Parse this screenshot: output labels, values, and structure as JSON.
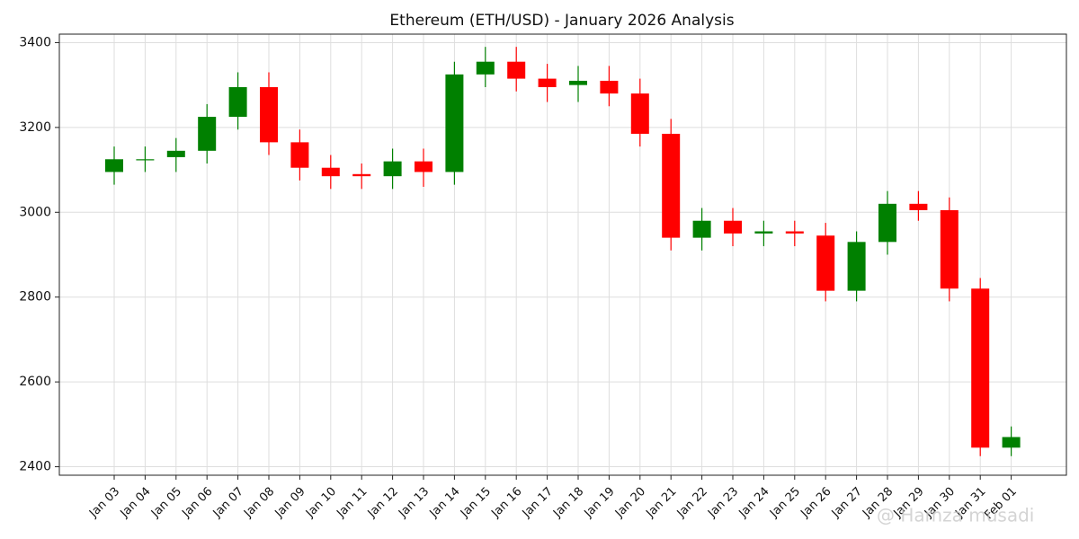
{
  "watermark": "@ Hamza musadi",
  "chart_data": {
    "type": "candlestick",
    "title": "Ethereum (ETH/USD) - January 2026 Analysis",
    "xlabel": "",
    "ylabel": "",
    "ylim": [
      2380,
      3420
    ],
    "yticks": [
      "2400",
      "2600",
      "2800",
      "3000",
      "3200",
      "3400"
    ],
    "grid": true,
    "up_color": "#008000",
    "down_color": "#ff0000",
    "categories": [
      "Jan 03",
      "Jan 04",
      "Jan 05",
      "Jan 06",
      "Jan 07",
      "Jan 08",
      "Jan 09",
      "Jan 10",
      "Jan 11",
      "Jan 12",
      "Jan 13",
      "Jan 14",
      "Jan 15",
      "Jan 16",
      "Jan 17",
      "Jan 18",
      "Jan 19",
      "Jan 20",
      "Jan 21",
      "Jan 22",
      "Jan 23",
      "Jan 24",
      "Jan 25",
      "Jan 26",
      "Jan 27",
      "Jan 28",
      "Jan 29",
      "Jan 30",
      "Jan 31",
      "Feb 01"
    ],
    "open": [
      3095,
      3125,
      3130,
      3145,
      3225,
      3295,
      3165,
      3105,
      3090,
      3085,
      3120,
      3095,
      3325,
      3355,
      3315,
      3300,
      3310,
      3280,
      3185,
      2940,
      2980,
      2950,
      2955,
      2945,
      2815,
      2930,
      3020,
      3005,
      2820,
      2445
    ],
    "high": [
      3155,
      3155,
      3175,
      3255,
      3330,
      3330,
      3195,
      3135,
      3115,
      3150,
      3150,
      3355,
      3390,
      3390,
      3350,
      3345,
      3345,
      3315,
      3220,
      3010,
      3010,
      2980,
      2980,
      2975,
      2955,
      3050,
      3050,
      3035,
      2845,
      2495
    ],
    "low": [
      3065,
      3095,
      3095,
      3115,
      3195,
      3135,
      3075,
      3055,
      3055,
      3055,
      3060,
      3065,
      3295,
      3285,
      3260,
      3260,
      3250,
      3155,
      2910,
      2910,
      2920,
      2920,
      2920,
      2790,
      2790,
      2900,
      2980,
      2790,
      2425,
      2425
    ],
    "close": [
      3125,
      3125,
      3145,
      3225,
      3295,
      3165,
      3105,
      3085,
      3085,
      3120,
      3095,
      3325,
      3355,
      3315,
      3295,
      3310,
      3280,
      3185,
      2940,
      2980,
      2950,
      2955,
      2950,
      2815,
      2930,
      3020,
      3005,
      2820,
      2445,
      2470
    ]
  }
}
